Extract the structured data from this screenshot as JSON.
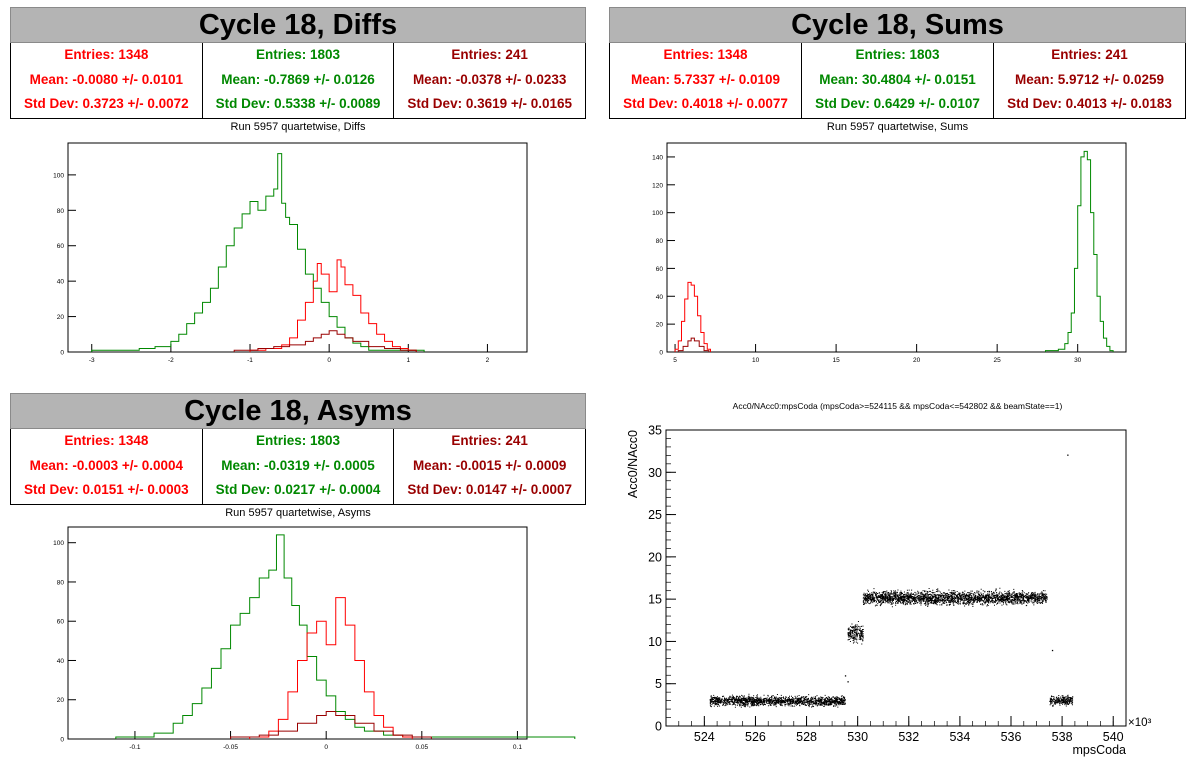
{
  "colors": {
    "series1": "#ff0000",
    "series2": "#008800",
    "series3": "#990000",
    "title_bg": "#b4b4b4"
  },
  "panels": {
    "diffs": {
      "title": "Cycle 18, Diffs",
      "subtitle": "Run 5957 quartetwise, Diffs",
      "stats": [
        {
          "entries": "Entries: 1348",
          "mean": "Mean: -0.0080 +/- 0.0101",
          "std": "Std Dev: 0.3723 +/- 0.0072"
        },
        {
          "entries": "Entries: 1803",
          "mean": "Mean: -0.7869 +/- 0.0126",
          "std": "Std Dev: 0.5338 +/- 0.0089"
        },
        {
          "entries": "Entries: 241",
          "mean": "Mean: -0.0378 +/- 0.0233",
          "std": "Std Dev: 0.3619 +/- 0.0165"
        }
      ]
    },
    "sums": {
      "title": "Cycle 18, Sums",
      "subtitle": "Run 5957 quartetwise, Sums",
      "stats": [
        {
          "entries": "Entries: 1348",
          "mean": "Mean: 5.7337 +/- 0.0109",
          "std": "Std Dev: 0.4018 +/- 0.0077"
        },
        {
          "entries": "Entries: 1803",
          "mean": "Mean: 30.4804 +/- 0.0151",
          "std": "Std Dev: 0.6429 +/- 0.0107"
        },
        {
          "entries": "Entries: 241",
          "mean": "Mean: 5.9712 +/- 0.0259",
          "std": "Std Dev: 0.4013 +/- 0.0183"
        }
      ]
    },
    "asyms": {
      "title": "Cycle 18, Asyms",
      "subtitle": "Run 5957 quartetwise, Asyms",
      "stats": [
        {
          "entries": "Entries: 1348",
          "mean": "Mean: -0.0003 +/- 0.0004",
          "std": "Std Dev: 0.0151 +/- 0.0003"
        },
        {
          "entries": "Entries: 1803",
          "mean": "Mean: -0.0319 +/- 0.0005",
          "std": "Std Dev: 0.0217 +/- 0.0004"
        },
        {
          "entries": "Entries: 241",
          "mean": "Mean: -0.0015 +/- 0.0009",
          "std": "Std Dev: 0.0147 +/- 0.0007"
        }
      ]
    },
    "scatter": {
      "title": "Acc0/NAcc0:mpsCoda (mpsCoda>=524115 && mpsCoda<=542802 && beamState==1)"
    }
  },
  "chart_data": [
    {
      "id": "diffs",
      "type": "histogram",
      "xlim": [
        -3.3,
        2.5
      ],
      "ylim": [
        0,
        118
      ],
      "xticks": [
        -3,
        -2,
        -1,
        0,
        1,
        2
      ],
      "yticks": [
        0,
        20,
        40,
        60,
        80,
        100
      ],
      "series": [
        {
          "color": "#008800",
          "points": [
            [
              -3.0,
              1
            ],
            [
              -2.8,
              1
            ],
            [
              -2.6,
              1
            ],
            [
              -2.4,
              2
            ],
            [
              -2.2,
              3
            ],
            [
              -2.0,
              6
            ],
            [
              -1.9,
              10
            ],
            [
              -1.8,
              16
            ],
            [
              -1.7,
              22
            ],
            [
              -1.6,
              28
            ],
            [
              -1.5,
              36
            ],
            [
              -1.4,
              48
            ],
            [
              -1.3,
              60
            ],
            [
              -1.2,
              70
            ],
            [
              -1.1,
              78
            ],
            [
              -1.0,
              85
            ],
            [
              -0.9,
              80
            ],
            [
              -0.8,
              88
            ],
            [
              -0.7,
              92
            ],
            [
              -0.65,
              112
            ],
            [
              -0.6,
              84
            ],
            [
              -0.55,
              76
            ],
            [
              -0.5,
              72
            ],
            [
              -0.4,
              58
            ],
            [
              -0.3,
              44
            ],
            [
              -0.2,
              36
            ],
            [
              -0.1,
              28
            ],
            [
              0.0,
              20
            ],
            [
              0.1,
              14
            ],
            [
              0.2,
              8
            ],
            [
              0.3,
              5
            ],
            [
              0.4,
              3
            ],
            [
              0.5,
              1
            ],
            [
              0.6,
              1
            ],
            [
              0.8,
              1
            ],
            [
              1.0,
              1
            ]
          ]
        },
        {
          "color": "#ff0000",
          "points": [
            [
              -1.0,
              1
            ],
            [
              -0.8,
              2
            ],
            [
              -0.6,
              4
            ],
            [
              -0.5,
              8
            ],
            [
              -0.4,
              18
            ],
            [
              -0.3,
              28
            ],
            [
              -0.2,
              40
            ],
            [
              -0.15,
              50
            ],
            [
              -0.1,
              44
            ],
            [
              0.0,
              34
            ],
            [
              0.1,
              52
            ],
            [
              0.15,
              48
            ],
            [
              0.2,
              38
            ],
            [
              0.3,
              32
            ],
            [
              0.4,
              22
            ],
            [
              0.5,
              16
            ],
            [
              0.6,
              10
            ],
            [
              0.7,
              6
            ],
            [
              0.8,
              3
            ],
            [
              0.9,
              2
            ],
            [
              1.0,
              1
            ]
          ]
        },
        {
          "color": "#990000",
          "points": [
            [
              -1.2,
              1
            ],
            [
              -0.9,
              2
            ],
            [
              -0.7,
              3
            ],
            [
              -0.5,
              4
            ],
            [
              -0.3,
              6
            ],
            [
              -0.2,
              8
            ],
            [
              -0.1,
              10
            ],
            [
              0.0,
              12
            ],
            [
              0.1,
              10
            ],
            [
              0.2,
              8
            ],
            [
              0.3,
              6
            ],
            [
              0.5,
              3
            ],
            [
              0.7,
              2
            ],
            [
              0.9,
              1
            ]
          ]
        }
      ]
    },
    {
      "id": "sums",
      "type": "histogram",
      "xlim": [
        4.5,
        33
      ],
      "ylim": [
        0,
        150
      ],
      "xticks": [
        5,
        10,
        15,
        20,
        25,
        30
      ],
      "yticks": [
        0,
        20,
        40,
        60,
        80,
        100,
        120,
        140
      ],
      "series": [
        {
          "color": "#008800",
          "points": [
            [
              28.0,
              1
            ],
            [
              28.8,
              2
            ],
            [
              29.2,
              6
            ],
            [
              29.4,
              14
            ],
            [
              29.6,
              28
            ],
            [
              29.8,
              60
            ],
            [
              30.0,
              105
            ],
            [
              30.2,
              140
            ],
            [
              30.4,
              144
            ],
            [
              30.6,
              138
            ],
            [
              30.8,
              100
            ],
            [
              31.0,
              70
            ],
            [
              31.2,
              40
            ],
            [
              31.4,
              22
            ],
            [
              31.6,
              10
            ],
            [
              31.8,
              4
            ],
            [
              32.0,
              1
            ]
          ]
        },
        {
          "color": "#ff0000",
          "points": [
            [
              5.0,
              2
            ],
            [
              5.2,
              8
            ],
            [
              5.4,
              22
            ],
            [
              5.6,
              38
            ],
            [
              5.8,
              50
            ],
            [
              6.0,
              48
            ],
            [
              6.2,
              40
            ],
            [
              6.4,
              26
            ],
            [
              6.6,
              14
            ],
            [
              6.8,
              6
            ],
            [
              7.0,
              2
            ]
          ]
        },
        {
          "color": "#990000",
          "points": [
            [
              5.2,
              1
            ],
            [
              5.5,
              4
            ],
            [
              5.8,
              8
            ],
            [
              6.0,
              10
            ],
            [
              6.2,
              8
            ],
            [
              6.5,
              4
            ],
            [
              6.8,
              1
            ]
          ]
        }
      ]
    },
    {
      "id": "asyms",
      "type": "histogram",
      "xlim": [
        -0.135,
        0.105
      ],
      "ylim": [
        0,
        108
      ],
      "xticks": [
        -0.1,
        -0.05,
        0,
        0.05,
        0.1
      ],
      "xticklabels": [
        "-0.1",
        "-0.05",
        "0",
        "0.05",
        "0.1"
      ],
      "yticks": [
        0,
        20,
        40,
        60,
        80,
        100
      ],
      "series": [
        {
          "color": "#008800",
          "points": [
            [
              -0.11,
              1
            ],
            [
              -0.1,
              1
            ],
            [
              -0.09,
              3
            ],
            [
              -0.08,
              8
            ],
            [
              -0.075,
              12
            ],
            [
              -0.07,
              18
            ],
            [
              -0.065,
              26
            ],
            [
              -0.06,
              36
            ],
            [
              -0.055,
              46
            ],
            [
              -0.05,
              58
            ],
            [
              -0.045,
              64
            ],
            [
              -0.04,
              72
            ],
            [
              -0.035,
              82
            ],
            [
              -0.03,
              86
            ],
            [
              -0.026,
              104
            ],
            [
              -0.022,
              82
            ],
            [
              -0.018,
              68
            ],
            [
              -0.014,
              58
            ],
            [
              -0.01,
              42
            ],
            [
              -0.005,
              30
            ],
            [
              0.0,
              22
            ],
            [
              0.005,
              14
            ],
            [
              0.01,
              10
            ],
            [
              0.015,
              6
            ],
            [
              0.02,
              4
            ],
            [
              0.03,
              2
            ],
            [
              0.04,
              1
            ],
            [
              0.05,
              1
            ],
            [
              0.09,
              1
            ]
          ]
        },
        {
          "color": "#ff0000",
          "points": [
            [
              -0.04,
              1
            ],
            [
              -0.03,
              4
            ],
            [
              -0.025,
              10
            ],
            [
              -0.02,
              24
            ],
            [
              -0.015,
              40
            ],
            [
              -0.01,
              54
            ],
            [
              -0.005,
              60
            ],
            [
              0.0,
              48
            ],
            [
              0.005,
              72
            ],
            [
              0.01,
              58
            ],
            [
              0.015,
              40
            ],
            [
              0.02,
              24
            ],
            [
              0.025,
              12
            ],
            [
              0.03,
              6
            ],
            [
              0.035,
              2
            ],
            [
              0.04,
              1
            ]
          ]
        },
        {
          "color": "#990000",
          "points": [
            [
              -0.05,
              1
            ],
            [
              -0.035,
              2
            ],
            [
              -0.025,
              4
            ],
            [
              -0.015,
              8
            ],
            [
              -0.005,
              12
            ],
            [
              0.0,
              14
            ],
            [
              0.005,
              12
            ],
            [
              0.015,
              8
            ],
            [
              0.025,
              4
            ],
            [
              0.035,
              2
            ],
            [
              0.045,
              1
            ]
          ]
        }
      ]
    },
    {
      "id": "scatter",
      "type": "scatter",
      "xlabel": "mpsCoda",
      "ylabel": "Acc0/NAcc0",
      "xexponent": "×10³",
      "xlim": [
        522.5,
        540.5
      ],
      "ylim": [
        0,
        35
      ],
      "xticks": [
        524,
        526,
        528,
        530,
        532,
        534,
        536,
        538,
        540
      ],
      "yticks": [
        0,
        5,
        10,
        15,
        20,
        25,
        30,
        35
      ],
      "clusters": [
        {
          "xrange": [
            524.2,
            529.5
          ],
          "ymean": 3.0,
          "yspread": 0.55,
          "count": 1600
        },
        {
          "xrange": [
            529.6,
            530.2
          ],
          "ymean": 11.0,
          "yspread": 1.0,
          "count": 220
        },
        {
          "xrange": [
            530.2,
            537.4
          ],
          "ymean": 15.2,
          "yspread": 0.75,
          "count": 2500
        },
        {
          "xrange": [
            537.5,
            538.4
          ],
          "ymean": 3.1,
          "yspread": 0.55,
          "count": 240
        }
      ],
      "outliers": [
        [
          538.2,
          32.1
        ],
        [
          537.6,
          9.0
        ],
        [
          529.6,
          5.3
        ],
        [
          529.5,
          6.0
        ]
      ]
    }
  ]
}
